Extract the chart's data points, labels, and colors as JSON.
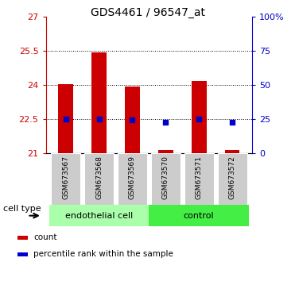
{
  "title": "GDS4461 / 96547_at",
  "samples": [
    "GSM673567",
    "GSM673568",
    "GSM673569",
    "GSM673570",
    "GSM673571",
    "GSM673572"
  ],
  "bar_heights": [
    24.05,
    25.42,
    23.93,
    21.13,
    24.18,
    21.13
  ],
  "bar_bottom": 21.0,
  "bar_color": "#cc0000",
  "dot_values_left": [
    22.5,
    22.5,
    22.48,
    22.35,
    22.5,
    22.35
  ],
  "dot_color": "#0000cc",
  "ylim_left": [
    21.0,
    27.0
  ],
  "ylim_right": [
    0,
    100
  ],
  "yticks_left": [
    21,
    22.5,
    24,
    25.5,
    27
  ],
  "yticks_right": [
    0,
    25,
    50,
    75,
    100
  ],
  "ytick_labels_left": [
    "21",
    "22.5",
    "24",
    "25.5",
    "27"
  ],
  "ytick_labels_right": [
    "0",
    "25",
    "50",
    "75",
    "100%"
  ],
  "grid_lines": [
    22.5,
    24.0,
    25.5
  ],
  "group_labels": [
    "endothelial cell",
    "control"
  ],
  "group_ranges": [
    [
      0,
      3
    ],
    [
      3,
      6
    ]
  ],
  "group_colors": [
    "#aaffaa",
    "#44ee44"
  ],
  "cell_type_label": "cell type",
  "legend_items": [
    {
      "label": "count",
      "color": "#cc0000"
    },
    {
      "label": "percentile rank within the sample",
      "color": "#0000cc"
    }
  ],
  "bar_width": 0.45,
  "tick_color_left": "#cc0000",
  "tick_color_right": "#0000cc",
  "bg_color_plot": "#ffffff",
  "xticklabel_bg": "#cccccc",
  "fig_width": 3.71,
  "fig_height": 3.54
}
